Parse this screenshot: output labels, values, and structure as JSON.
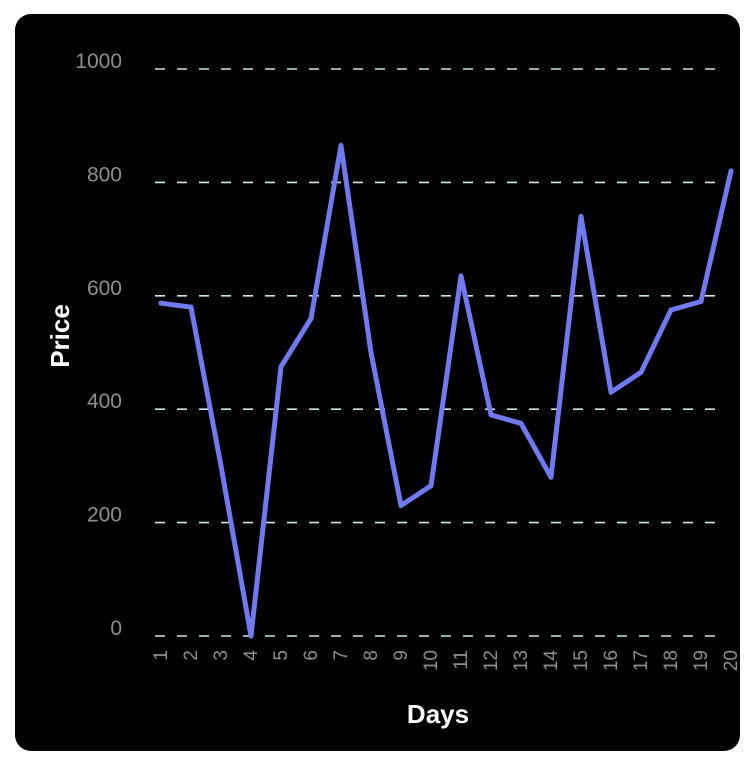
{
  "chart_data": {
    "type": "line",
    "title": "",
    "xlabel": "Days",
    "ylabel": "Price",
    "ylim": [
      0,
      1000
    ],
    "y_ticks": [
      "0",
      "200",
      "400",
      "600",
      "800",
      "1000"
    ],
    "x": [
      "1",
      "2",
      "3",
      "4",
      "5",
      "6",
      "7",
      "8",
      "9",
      "10",
      "11",
      "12",
      "13",
      "14",
      "15",
      "16",
      "17",
      "18",
      "19",
      "20"
    ],
    "series": [
      {
        "values": [
          587,
          580,
          300,
          0,
          475,
          560,
          865,
          500,
          230,
          265,
          635,
          390,
          375,
          280,
          740,
          430,
          465,
          575,
          590,
          820
        ]
      }
    ],
    "grid": "horizontal dashed",
    "colors": {
      "line": "#6f7af0",
      "grid": "#cfe8e6",
      "background": "#000000",
      "tick_text": "#8e8e8e",
      "axis_title": "#ffffff"
    }
  }
}
